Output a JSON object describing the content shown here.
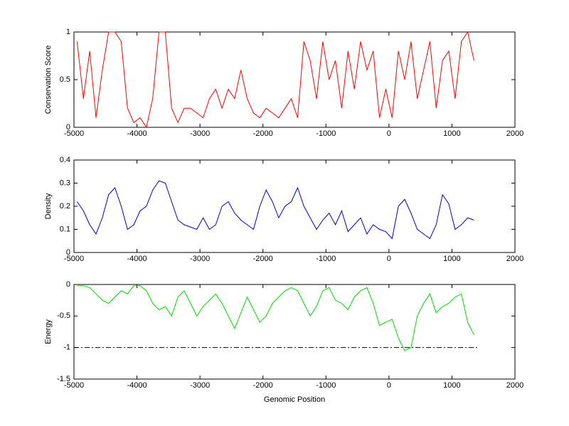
{
  "chart_data": [
    {
      "type": "line",
      "ylabel": "Conservation Score",
      "color": "#ff0000",
      "x": [
        -4950,
        -4850,
        -4750,
        -4650,
        -4550,
        -4450,
        -4350,
        -4250,
        -4150,
        -4050,
        -3950,
        -3850,
        -3750,
        -3650,
        -3550,
        -3450,
        -3350,
        -3250,
        -3150,
        -3050,
        -2950,
        -2850,
        -2750,
        -2650,
        -2550,
        -2450,
        -2350,
        -2250,
        -2150,
        -2050,
        -1950,
        -1850,
        -1750,
        -1650,
        -1550,
        -1450,
        -1350,
        -1250,
        -1150,
        -1050,
        -950,
        -850,
        -750,
        -650,
        -550,
        -450,
        -350,
        -250,
        -150,
        -50,
        50,
        150,
        250,
        350,
        450,
        550,
        650,
        750,
        850,
        950,
        1050,
        1150,
        1250,
        1350
      ],
      "values": [
        0.9,
        0.3,
        0.8,
        0.1,
        0.6,
        1,
        1,
        0.9,
        0.2,
        0.05,
        0.1,
        0,
        0.3,
        1,
        1,
        0.2,
        0.05,
        0.2,
        0.2,
        0.15,
        0.1,
        0.3,
        0.4,
        0.2,
        0.4,
        0.3,
        0.6,
        0.3,
        0.15,
        0.1,
        0.2,
        0.15,
        0.1,
        0.2,
        0.3,
        0.1,
        0.9,
        0.7,
        0.3,
        0.9,
        0.5,
        0.7,
        0.2,
        0.8,
        0.4,
        0.9,
        0.6,
        0.8,
        0.1,
        0.4,
        0.1,
        0.8,
        0.5,
        0.9,
        0.3,
        0.6,
        0.9,
        0.2,
        0.7,
        0.8,
        0.3,
        0.9,
        1,
        0.7
      ],
      "xlim": [
        -5000,
        2000
      ],
      "xticks": [
        -5000,
        -4000,
        -3000,
        -2000,
        -1000,
        0,
        1000,
        2000
      ],
      "ylim": [
        0,
        1
      ],
      "yticks": [
        0,
        0.5,
        1
      ]
    },
    {
      "type": "line",
      "ylabel": "Density",
      "color": "#0000cc",
      "x": [
        -4950,
        -4850,
        -4750,
        -4650,
        -4550,
        -4450,
        -4350,
        -4250,
        -4150,
        -4050,
        -3950,
        -3850,
        -3750,
        -3650,
        -3550,
        -3450,
        -3350,
        -3250,
        -3150,
        -3050,
        -2950,
        -2850,
        -2750,
        -2650,
        -2550,
        -2450,
        -2350,
        -2250,
        -2150,
        -2050,
        -1950,
        -1850,
        -1750,
        -1650,
        -1550,
        -1450,
        -1350,
        -1250,
        -1150,
        -1050,
        -950,
        -850,
        -750,
        -650,
        -550,
        -450,
        -350,
        -250,
        -150,
        -50,
        50,
        150,
        250,
        350,
        450,
        550,
        650,
        750,
        850,
        950,
        1050,
        1150,
        1250,
        1350
      ],
      "values": [
        0.22,
        0.18,
        0.12,
        0.08,
        0.15,
        0.25,
        0.28,
        0.2,
        0.1,
        0.12,
        0.18,
        0.2,
        0.27,
        0.31,
        0.3,
        0.22,
        0.14,
        0.12,
        0.11,
        0.1,
        0.15,
        0.1,
        0.12,
        0.2,
        0.22,
        0.17,
        0.14,
        0.12,
        0.1,
        0.2,
        0.27,
        0.22,
        0.15,
        0.2,
        0.22,
        0.28,
        0.2,
        0.15,
        0.1,
        0.14,
        0.17,
        0.12,
        0.18,
        0.09,
        0.12,
        0.15,
        0.08,
        0.12,
        0.1,
        0.09,
        0.06,
        0.2,
        0.23,
        0.17,
        0.1,
        0.08,
        0.06,
        0.12,
        0.25,
        0.21,
        0.1,
        0.12,
        0.15,
        0.14
      ],
      "xlim": [
        -5000,
        2000
      ],
      "xticks": [
        -5000,
        -4000,
        -3000,
        -2000,
        -1000,
        0,
        1000,
        2000
      ],
      "ylim": [
        0,
        0.4
      ],
      "yticks": [
        0,
        0.1,
        0.2,
        0.3,
        0.4
      ]
    },
    {
      "type": "line",
      "ylabel": "Energy",
      "xlabel": "Genomic Position",
      "color": "#00dd00",
      "x": [
        -4950,
        -4850,
        -4750,
        -4650,
        -4550,
        -4450,
        -4350,
        -4250,
        -4150,
        -4050,
        -3950,
        -3850,
        -3750,
        -3650,
        -3550,
        -3450,
        -3350,
        -3250,
        -3150,
        -3050,
        -2950,
        -2850,
        -2750,
        -2650,
        -2550,
        -2450,
        -2350,
        -2250,
        -2150,
        -2050,
        -1950,
        -1850,
        -1750,
        -1650,
        -1550,
        -1450,
        -1350,
        -1250,
        -1150,
        -1050,
        -950,
        -850,
        -750,
        -650,
        -550,
        -450,
        -350,
        -250,
        -150,
        -50,
        50,
        150,
        250,
        350,
        450,
        550,
        650,
        750,
        850,
        950,
        1050,
        1150,
        1250,
        1350
      ],
      "values": [
        -0.02,
        -0.02,
        -0.05,
        -0.15,
        -0.25,
        -0.3,
        -0.2,
        -0.1,
        -0.15,
        -0.02,
        -0.02,
        -0.1,
        -0.3,
        -0.4,
        -0.35,
        -0.5,
        -0.2,
        -0.1,
        -0.3,
        -0.5,
        -0.35,
        -0.25,
        -0.15,
        -0.3,
        -0.5,
        -0.7,
        -0.45,
        -0.2,
        -0.4,
        -0.6,
        -0.5,
        -0.3,
        -0.2,
        -0.1,
        -0.05,
        -0.1,
        -0.3,
        -0.5,
        -0.35,
        -0.1,
        -0.05,
        -0.25,
        -0.3,
        -0.4,
        -0.2,
        -0.1,
        -0.05,
        -0.3,
        -0.65,
        -0.6,
        -0.55,
        -0.85,
        -1.05,
        -1.0,
        -0.5,
        -0.3,
        -0.15,
        -0.45,
        -0.35,
        -0.3,
        -0.2,
        -0.15,
        -0.6,
        -0.8
      ],
      "reference_line": {
        "y": -1,
        "x": [
          -5000,
          1400
        ]
      },
      "xlim": [
        -5000,
        2000
      ],
      "xticks": [
        -5000,
        -4000,
        -3000,
        -2000,
        -1000,
        0,
        1000,
        2000
      ],
      "ylim": [
        -1.5,
        0
      ],
      "yticks": [
        -1.5,
        -1,
        -0.5,
        0
      ]
    }
  ]
}
